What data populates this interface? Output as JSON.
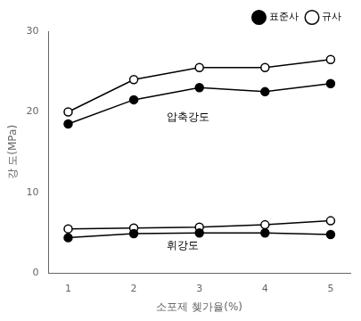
{
  "chart_data": {
    "type": "line",
    "xlabel": "소포제 쳊가율(%)",
    "ylabel": "강 도(MPa)",
    "x": [
      1,
      2,
      3,
      4,
      5
    ],
    "series": [
      {
        "name": "표준사",
        "color": "#000000",
        "marker": "filled_circle",
        "values": [
          18.5,
          21.5,
          23.0,
          22.5,
          23.5
        ]
      },
      {
        "name": "규사",
        "color": "#000000",
        "marker": "open_circle",
        "values": [
          20.0,
          24.0,
          25.5,
          25.5,
          26.5
        ]
      },
      {
        "name": "표준사",
        "color": "#000000",
        "marker": "filled_circle",
        "values": [
          4.4,
          4.9,
          5.0,
          5.0,
          4.8
        ]
      },
      {
        "name": "규사",
        "color": "#000000",
        "marker": "open_circle",
        "values": [
          5.5,
          5.6,
          5.7,
          6.0,
          6.5
        ]
      }
    ],
    "annotations": [
      {
        "text": "압축강도",
        "x": 2.5,
        "y": 19.0
      },
      {
        "text": "휘강도",
        "x": 2.5,
        "y": 3.0
      }
    ],
    "xlim": [
      0.7,
      5.3
    ],
    "xticks": [
      1,
      2,
      3,
      4,
      5
    ],
    "ylim": [
      0,
      30
    ],
    "yticks": [
      0,
      10,
      20,
      30
    ],
    "grid": false,
    "legend": "upper right"
  }
}
